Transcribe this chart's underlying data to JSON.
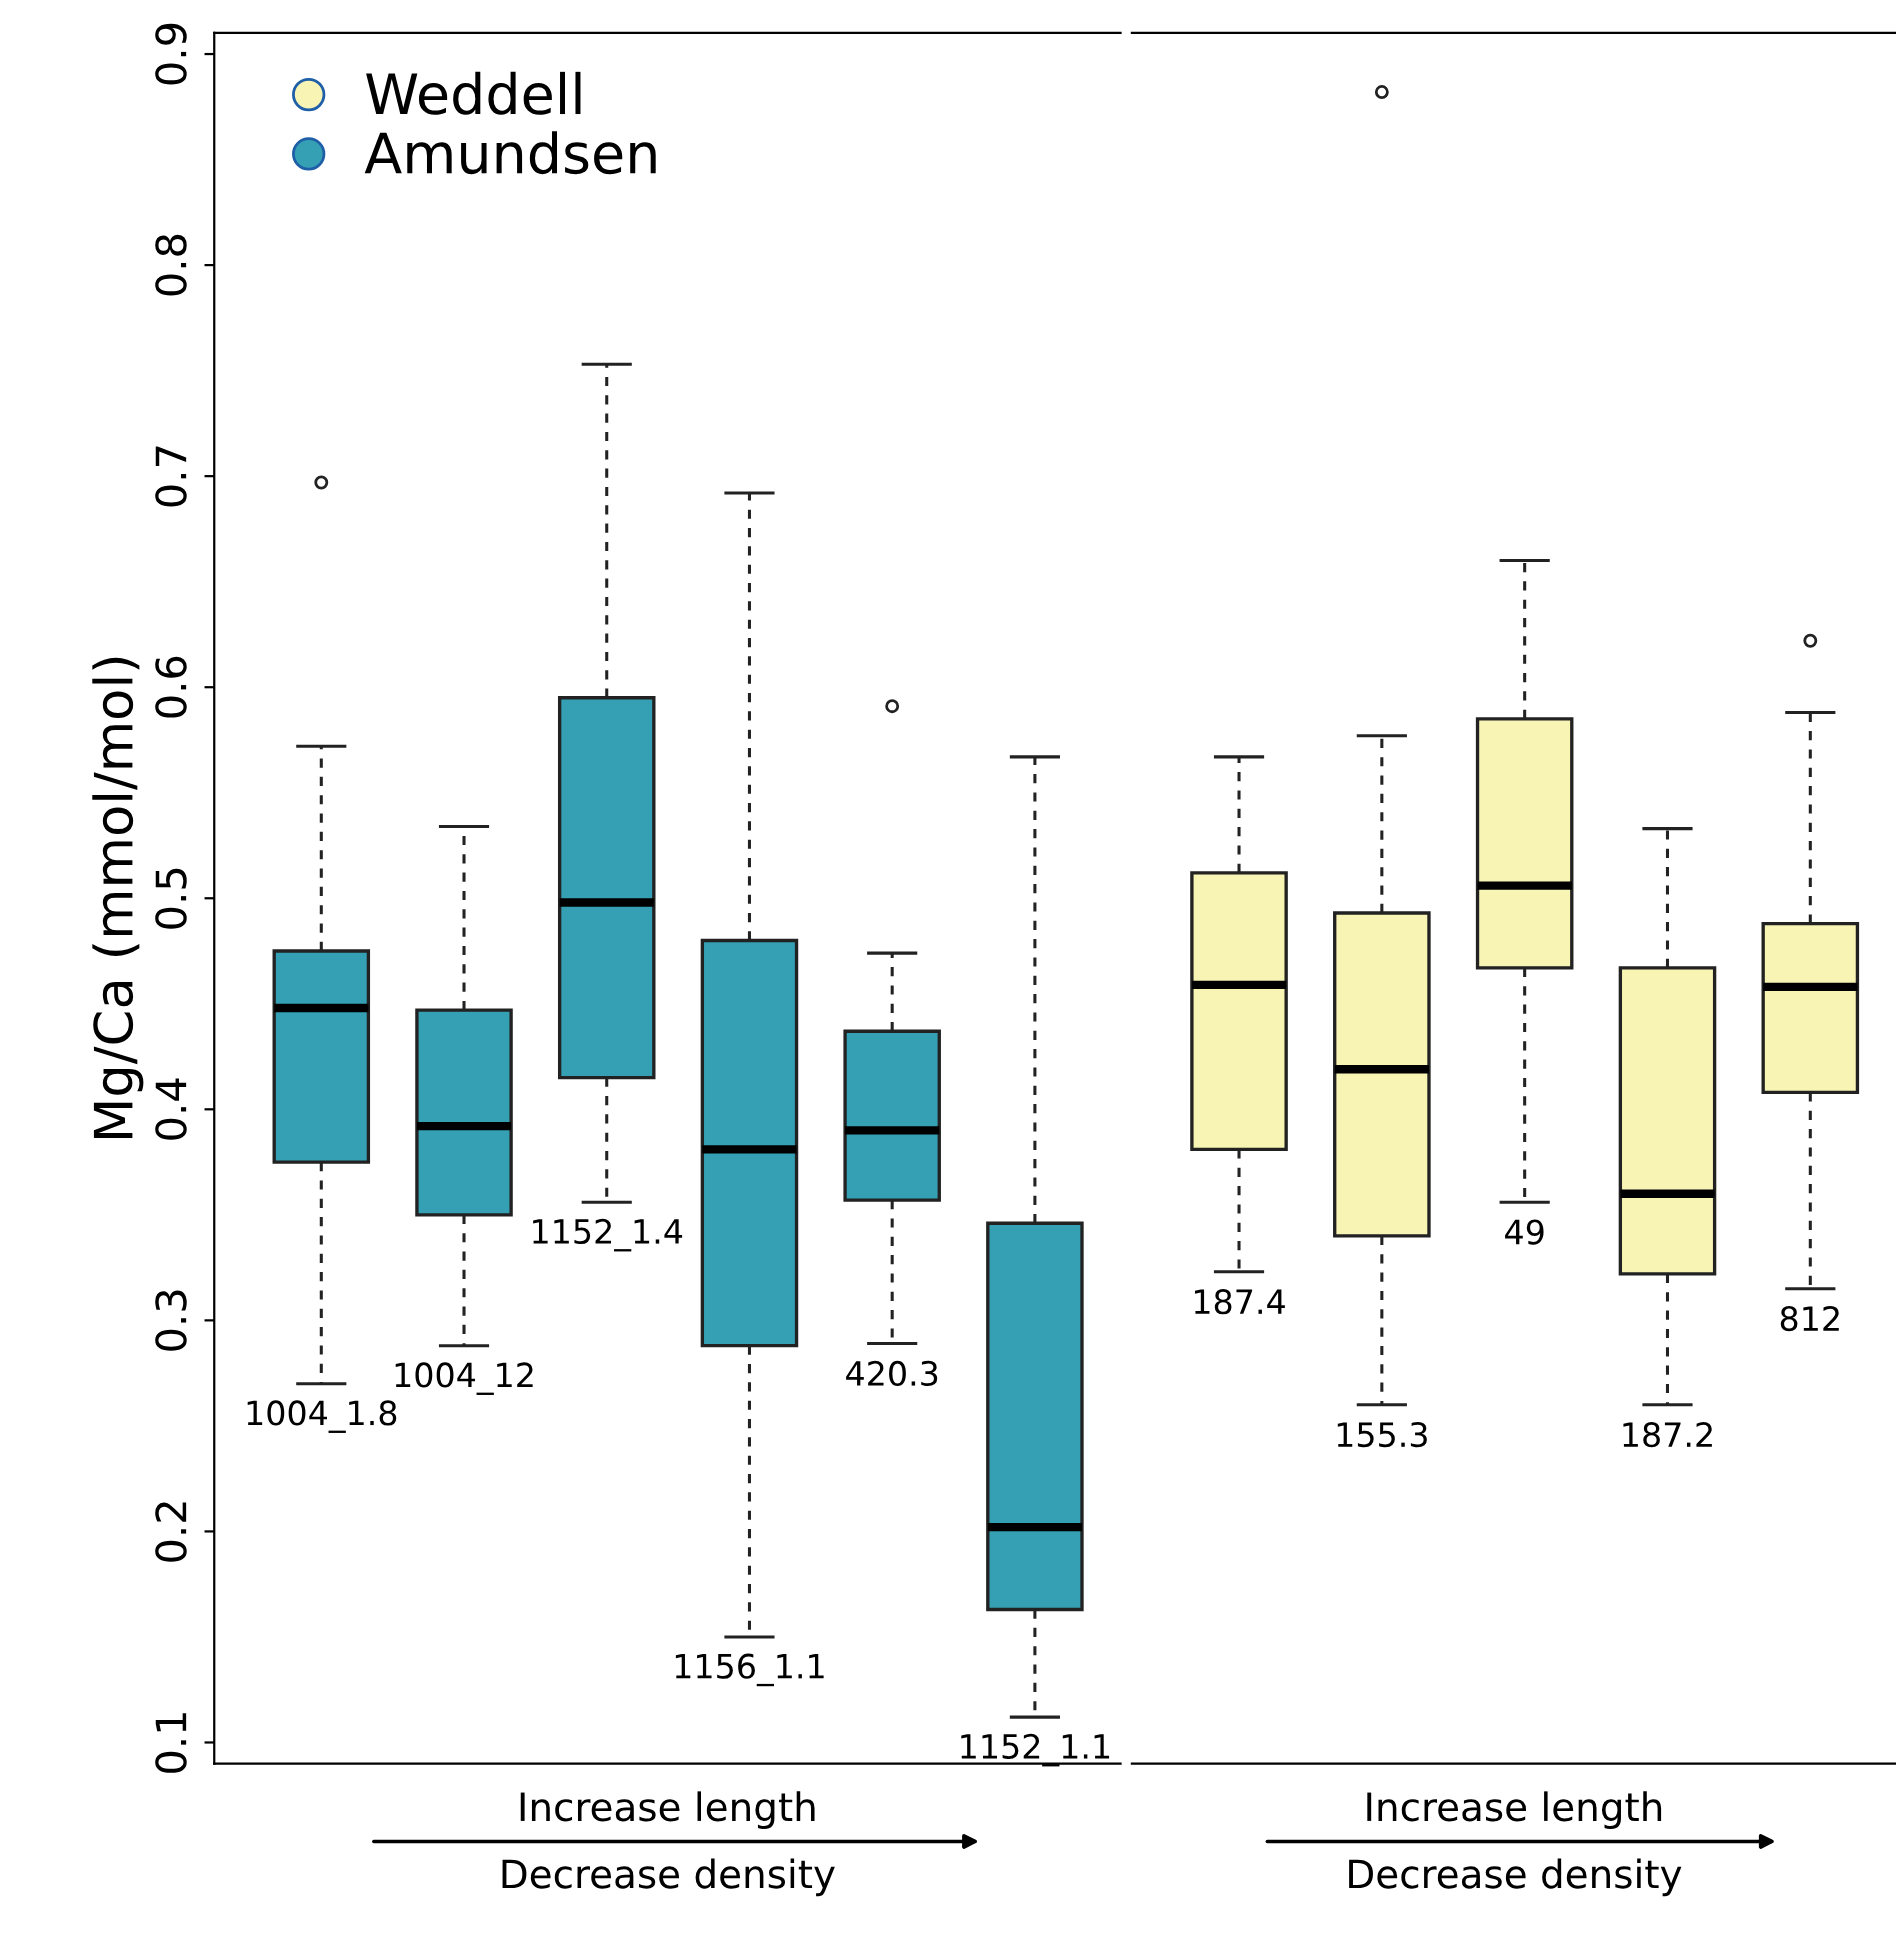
{
  "chart_data": [
    {
      "type": "box",
      "ylabel": "Mg/Ca (mmol/mol)",
      "xlabel": "Increase length\nDecrease density",
      "categories": [
        "1004_1.8",
        "1004_12",
        "1152_1.4",
        "1156_1.1",
        "420.3",
        "1152_1.1"
      ],
      "ylim": [
        0.09,
        0.91
      ],
      "yticks": [
        0.1,
        0.2,
        0.3,
        0.4,
        0.5,
        0.6,
        0.7,
        0.8,
        0.9
      ],
      "legend": "top left",
      "grid": false,
      "series": [
        {
          "name": "Amundsen",
          "color": "#35a0b4",
          "boxes": [
            {
              "low": 0.27,
              "q1": 0.375,
              "median": 0.448,
              "q3": 0.475,
              "high": 0.572,
              "outliers": [
                0.697
              ]
            },
            {
              "low": 0.288,
              "q1": 0.35,
              "median": 0.392,
              "q3": 0.447,
              "high": 0.534
            },
            {
              "low": 0.356,
              "q1": 0.415,
              "median": 0.498,
              "q3": 0.595,
              "high": 0.753
            },
            {
              "low": 0.15,
              "q1": 0.288,
              "median": 0.381,
              "q3": 0.48,
              "high": 0.692
            },
            {
              "low": 0.289,
              "q1": 0.357,
              "median": 0.39,
              "q3": 0.437,
              "high": 0.474,
              "outliers": [
                0.591
              ]
            },
            {
              "low": 0.112,
              "q1": 0.163,
              "median": 0.202,
              "q3": 0.346,
              "high": 0.567
            }
          ]
        }
      ]
    },
    {
      "type": "box",
      "xlabel": "Increase length\nDecrease density",
      "categories": [
        "187.4",
        "155.3",
        "49",
        "187.2",
        "812"
      ],
      "ylim": [
        0.09,
        0.91
      ],
      "tick_labels": false,
      "grid": false,
      "series": [
        {
          "name": "Weddell",
          "color": "#f8f4b4",
          "boxes": [
            {
              "low": 0.323,
              "q1": 0.381,
              "median": 0.459,
              "q3": 0.512,
              "high": 0.567
            },
            {
              "low": 0.26,
              "q1": 0.34,
              "median": 0.419,
              "q3": 0.493,
              "high": 0.577,
              "outliers": [
                0.882
              ]
            },
            {
              "low": 0.356,
              "q1": 0.467,
              "median": 0.506,
              "q3": 0.585,
              "high": 0.66
            },
            {
              "low": 0.26,
              "q1": 0.322,
              "median": 0.36,
              "q3": 0.467,
              "high": 0.533
            },
            {
              "low": 0.315,
              "q1": 0.408,
              "median": 0.458,
              "q3": 0.488,
              "high": 0.588,
              "outliers": [
                0.622
              ]
            }
          ]
        }
      ]
    }
  ]
}
